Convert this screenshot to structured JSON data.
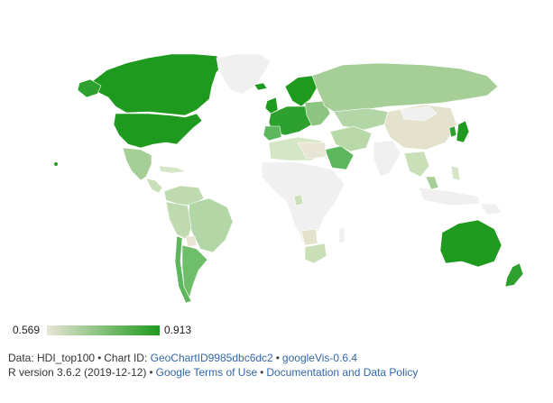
{
  "legend": {
    "min_label": "0.569",
    "max_label": "0.913",
    "color_low": "#e8e5d4",
    "color_high": "#1e9a1e"
  },
  "colors": {
    "no_data": "#f0f0f0",
    "mid": "#a6cf98",
    "light": "#c8dfb8",
    "dark": "#2ea02e"
  },
  "footer": {
    "line1_prefix": "Data: HDI_top100",
    "chart_id_prefix": "Chart ID:",
    "chart_id_link": "GeoChartID9985dbc6dc2",
    "googlevis_link": "googleVis-0.6.4",
    "line2_prefix": "R version 3.6.2 (2019-12-12)",
    "terms_link": "Google Terms of Use",
    "policy_link": "Documentation and Data Policy",
    "bullet": "•"
  }
}
